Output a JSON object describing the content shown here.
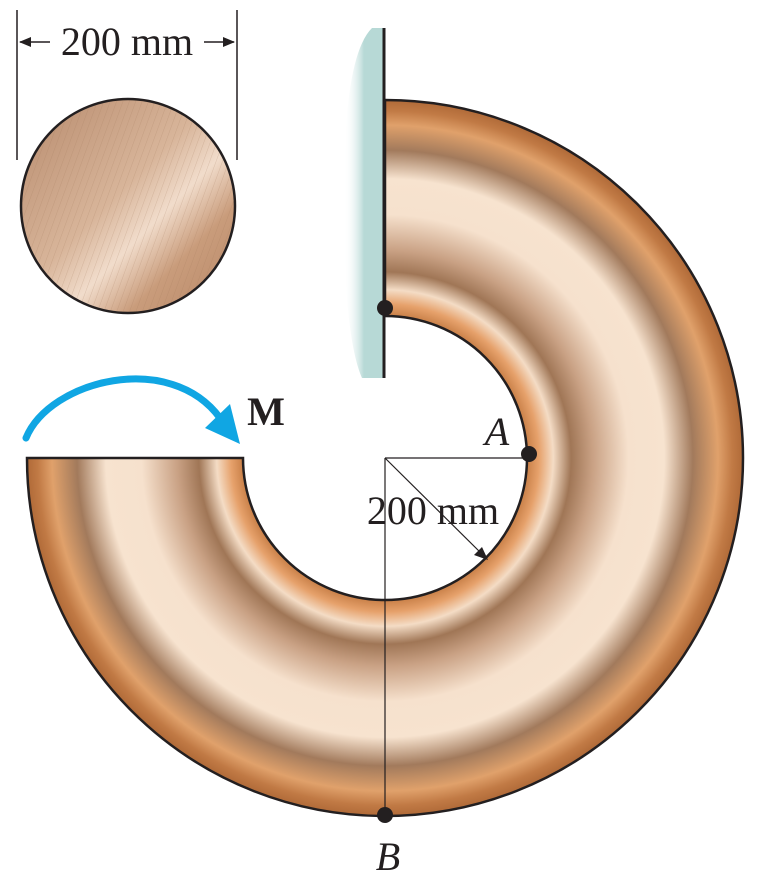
{
  "labels": {
    "section_dimension": "200 mm",
    "radius_dimension": "200 mm",
    "moment": "M",
    "point_a": "A",
    "point_b": "B"
  },
  "colors": {
    "tube_light": "#f6dfca",
    "tube_dark": "#b8865e",
    "tube_edge": "#d08e56",
    "outline": "#231f20",
    "wall": "#c8e2e0",
    "moment_arrow": "#10a6e3",
    "section_fill": "#c89a7a"
  }
}
